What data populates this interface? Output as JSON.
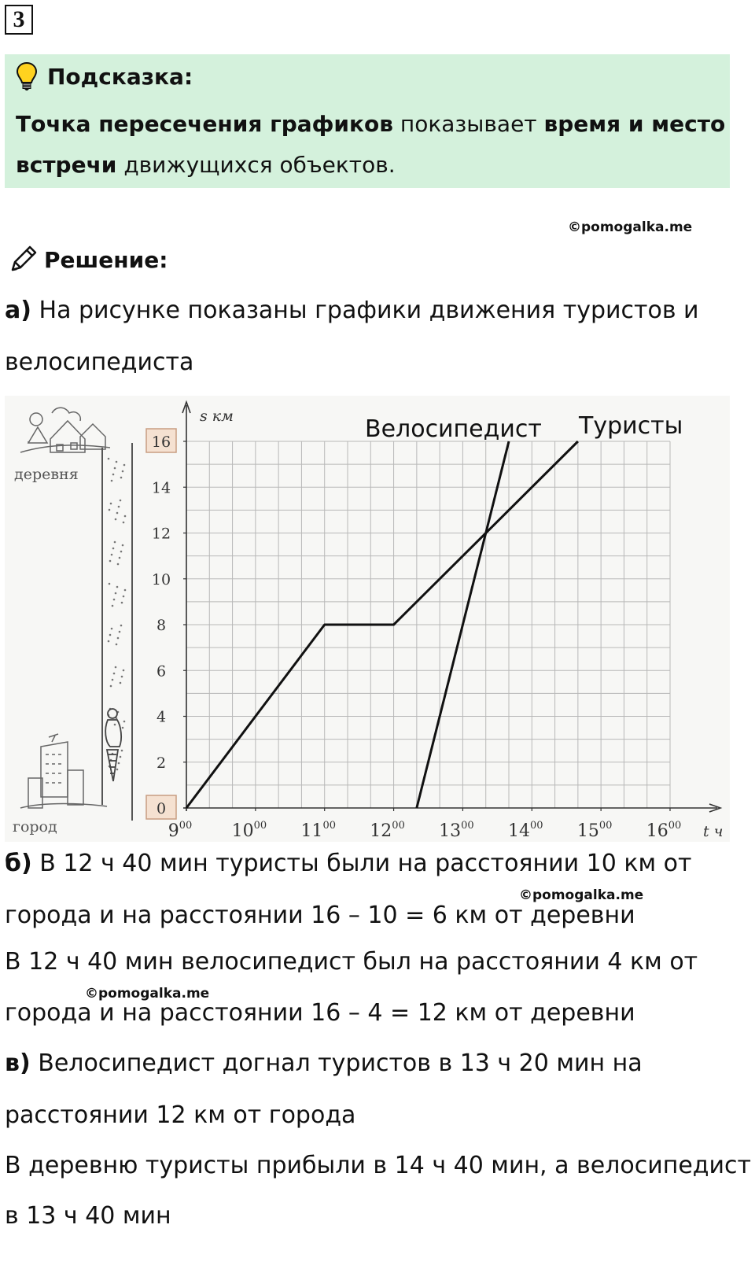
{
  "task_number": "3",
  "hint": {
    "title": "Подсказка:",
    "icon": "lightbulb-icon",
    "line1_bold": "Точка пересечения графиков",
    "line1_rest": " показывает ",
    "line1_bold2": "время и место",
    "line2_bold": "встречи",
    "line2_rest": " движущихся объектов."
  },
  "watermark": "©pomogalka.me",
  "solution": {
    "title": "Решение:",
    "icon": "pencil-icon"
  },
  "part_a": {
    "label": "а)",
    "line1": " На рисунке показаны графики движения туристов и",
    "line2": "велосипедиста"
  },
  "part_b": {
    "label": "б)",
    "line1": " В 12 ч 40 мин туристы были на расстоянии 10 км от",
    "line2": "города и на расстоянии 16 – 10 = 6 км от деревни",
    "line3": "В 12 ч 40 мин велосипедист был на расстоянии 4 км от",
    "line4": "города и на расстоянии 16 – 4 = 12 км от деревни"
  },
  "part_v": {
    "label": "в)",
    "line1": " Велосипедист догнал туристов в 13 ч 20 мин на",
    "line2": "расстоянии 12 км от города",
    "line3": "В деревню туристы прибыли в 14 ч 40 мин, а велосипедист –",
    "line4": "в 13 ч 40 мин"
  },
  "chart_data": {
    "type": "line",
    "xlabel": "t ч",
    "ylabel": "s км",
    "xlim": [
      9,
      16
    ],
    "ylim": [
      0,
      16
    ],
    "x_ticks": [
      {
        "value": 9,
        "hour": "9",
        "min": "00"
      },
      {
        "value": 10,
        "hour": "10",
        "min": "00"
      },
      {
        "value": 11,
        "hour": "11",
        "min": "00"
      },
      {
        "value": 12,
        "hour": "12",
        "min": "00"
      },
      {
        "value": 13,
        "hour": "13",
        "min": "00"
      },
      {
        "value": 14,
        "hour": "14",
        "min": "00"
      },
      {
        "value": 15,
        "hour": "15",
        "min": "00"
      },
      {
        "value": 16,
        "hour": "16",
        "min": "00"
      }
    ],
    "y_ticks": [
      0,
      2,
      4,
      6,
      8,
      10,
      12,
      14,
      16
    ],
    "boxed_y_ticks": [
      0,
      16
    ],
    "grid": true,
    "series": [
      {
        "name": "Туристы",
        "x": [
          9,
          11,
          12,
          14.667
        ],
        "y": [
          0,
          8,
          8,
          16
        ]
      },
      {
        "name": "Велосипедист",
        "x": [
          12.333,
          13.667
        ],
        "y": [
          0,
          16
        ]
      }
    ],
    "side_labels": {
      "top": "деревня",
      "bottom": "город"
    }
  }
}
